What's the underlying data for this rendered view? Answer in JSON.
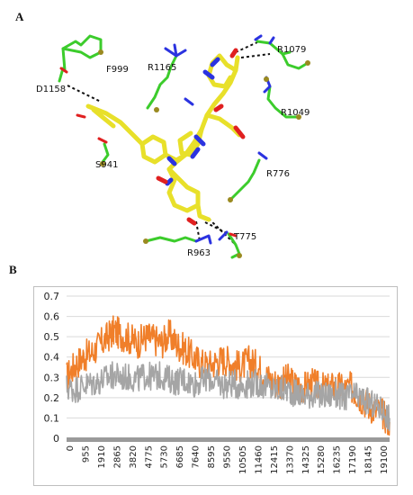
{
  "figure": {
    "panel_a_label": "A",
    "panel_b_label": "B"
  },
  "structure": {
    "residue_labels": [
      "F999",
      "R1165",
      "R1079",
      "D1158",
      "R1049",
      "S941",
      "R776",
      "T775",
      "R963"
    ],
    "colors": {
      "ligand": "#e8e02a",
      "residue_carbon": "#3ccc2c",
      "nitrogen": "#2b33e0",
      "oxygen": "#e02020",
      "sulfur_tip": "#9a8a20",
      "hbond": "#111111"
    }
  },
  "chart_data": {
    "type": "line",
    "title": "",
    "xlabel": "",
    "ylabel": "",
    "ylim": [
      0,
      0.7
    ],
    "yticks": [
      "0",
      "0.1",
      "0.2",
      "0.3",
      "0.4",
      "0.5",
      "0.6",
      "0.7"
    ],
    "xlim": [
      0,
      19500
    ],
    "xticks": [
      "0",
      "955",
      "1910",
      "2865",
      "3820",
      "4775",
      "5730",
      "6685",
      "7640",
      "8595",
      "9550",
      "10505",
      "11460",
      "12415",
      "13370",
      "14325",
      "15280",
      "16235",
      "17190",
      "18145",
      "19100"
    ],
    "grid": true,
    "legend": "none",
    "series": [
      {
        "color": "#f07f2a",
        "points": [
          [
            0,
            0.3
          ],
          [
            500,
            0.36
          ],
          [
            1000,
            0.4
          ],
          [
            1500,
            0.42
          ],
          [
            2000,
            0.46
          ],
          [
            2500,
            0.5
          ],
          [
            2865,
            0.53
          ],
          [
            3300,
            0.51
          ],
          [
            3820,
            0.49
          ],
          [
            4300,
            0.47
          ],
          [
            4775,
            0.5
          ],
          [
            5200,
            0.49
          ],
          [
            5730,
            0.47
          ],
          [
            6200,
            0.51
          ],
          [
            6685,
            0.46
          ],
          [
            7100,
            0.44
          ],
          [
            7640,
            0.4
          ],
          [
            8100,
            0.37
          ],
          [
            8595,
            0.36
          ],
          [
            9100,
            0.38
          ],
          [
            9550,
            0.39
          ],
          [
            10000,
            0.37
          ],
          [
            10505,
            0.35
          ],
          [
            11000,
            0.38
          ],
          [
            11460,
            0.36
          ],
          [
            11900,
            0.32
          ],
          [
            12415,
            0.28
          ],
          [
            12900,
            0.27
          ],
          [
            13370,
            0.29
          ],
          [
            13850,
            0.26
          ],
          [
            14325,
            0.25
          ],
          [
            14800,
            0.27
          ],
          [
            15280,
            0.25
          ],
          [
            15750,
            0.24
          ],
          [
            16235,
            0.26
          ],
          [
            16700,
            0.24
          ],
          [
            17190,
            0.25
          ],
          [
            17650,
            0.21
          ],
          [
            18145,
            0.17
          ],
          [
            18600,
            0.14
          ],
          [
            19100,
            0.12
          ],
          [
            19500,
            0.08
          ]
        ]
      },
      {
        "color": "#a5a5a5",
        "points": [
          [
            0,
            0.25
          ],
          [
            500,
            0.24
          ],
          [
            1000,
            0.26
          ],
          [
            1500,
            0.27
          ],
          [
            2000,
            0.28
          ],
          [
            2500,
            0.3
          ],
          [
            2865,
            0.31
          ],
          [
            3300,
            0.3
          ],
          [
            3820,
            0.3
          ],
          [
            4300,
            0.29
          ],
          [
            4775,
            0.31
          ],
          [
            5200,
            0.3
          ],
          [
            5730,
            0.31
          ],
          [
            6200,
            0.29
          ],
          [
            6685,
            0.28
          ],
          [
            7100,
            0.29
          ],
          [
            7640,
            0.27
          ],
          [
            8100,
            0.28
          ],
          [
            8595,
            0.3
          ],
          [
            9100,
            0.27
          ],
          [
            9550,
            0.26
          ],
          [
            10000,
            0.27
          ],
          [
            10505,
            0.26
          ],
          [
            11000,
            0.27
          ],
          [
            11460,
            0.27
          ],
          [
            11900,
            0.26
          ],
          [
            12415,
            0.24
          ],
          [
            12900,
            0.24
          ],
          [
            13370,
            0.24
          ],
          [
            13850,
            0.22
          ],
          [
            14325,
            0.21
          ],
          [
            14800,
            0.22
          ],
          [
            15280,
            0.21
          ],
          [
            15750,
            0.21
          ],
          [
            16235,
            0.22
          ],
          [
            16700,
            0.2
          ],
          [
            17190,
            0.21
          ],
          [
            17650,
            0.2
          ],
          [
            18145,
            0.18
          ],
          [
            18600,
            0.16
          ],
          [
            19100,
            0.14
          ],
          [
            19500,
            0.1
          ]
        ]
      }
    ]
  }
}
